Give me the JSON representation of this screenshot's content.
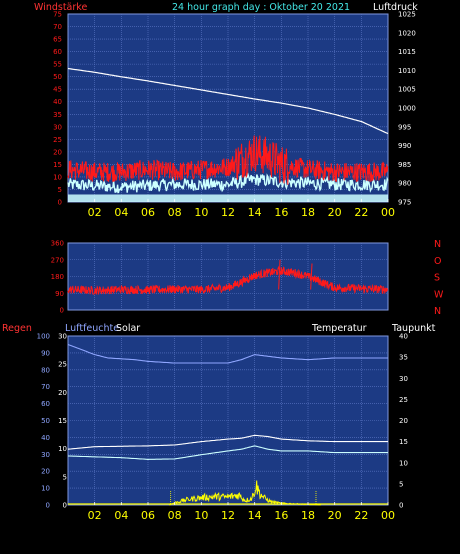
{
  "title": "24 hour graph day : Oktober 20 2021",
  "colors": {
    "background": "#000000",
    "plot_bg": "#1c3a84",
    "grid": "#5d78c8",
    "wind": "#ff1a1a",
    "wind_gust_band": "#ccffff",
    "pressure": "#ffffff",
    "direction": "#ff1a1a",
    "humidity": "#8fa6ff",
    "temperature": "#ffffff",
    "dewpoint": "#ccffff",
    "solar": "#ffff00",
    "rain_label": "#ff3333",
    "xtick": "#ffff00"
  },
  "chart_data": [
    {
      "type": "line",
      "name": "wind-pressure",
      "left_label": "Windstärke",
      "right_label": "Luftdruck",
      "x_ticks": [
        "02",
        "04",
        "06",
        "08",
        "10",
        "12",
        "14",
        "16",
        "18",
        "20",
        "22",
        "00"
      ],
      "xlim": [
        0,
        24
      ],
      "left_ylim": [
        0,
        75
      ],
      "left_ticks": [
        "0",
        "5",
        "10",
        "15",
        "20",
        "25",
        "30",
        "35",
        "40",
        "45",
        "50",
        "55",
        "60",
        "65",
        "70",
        "75"
      ],
      "right_ylim": [
        975,
        1025
      ],
      "right_ticks": [
        "975",
        "980",
        "985",
        "990",
        "995",
        "1000",
        "1005",
        "1010",
        "1015",
        "1020",
        "1025"
      ],
      "series": [
        {
          "axis": "right",
          "x": [
            0,
            2,
            4,
            6,
            8,
            10,
            12,
            13,
            14,
            16,
            18,
            20,
            22,
            23,
            24
          ],
          "values": [
            1010.5,
            1009.5,
            1008.3,
            1007.2,
            1006.0,
            1004.8,
            1003.6,
            1003.0,
            1002.4,
            1001.3,
            1000.0,
            998.3,
            996.4,
            994.8,
            993.2
          ]
        },
        {
          "axis": "left",
          "x": [
            0,
            2,
            4,
            6,
            8,
            10,
            12,
            13,
            14,
            15,
            16,
            18,
            20,
            22,
            24
          ],
          "values": [
            13,
            12,
            12,
            13,
            12,
            13,
            14,
            17,
            20,
            18,
            15,
            13,
            12,
            12,
            12
          ]
        },
        {
          "axis": "left",
          "x": [
            0,
            4,
            8,
            12,
            14,
            16,
            20,
            24
          ],
          "values": [
            7,
            6,
            7,
            7,
            9,
            8,
            7,
            7
          ]
        }
      ]
    },
    {
      "type": "line",
      "name": "wind-direction",
      "left_ylim": [
        0,
        360
      ],
      "left_ticks": [
        "0",
        "90",
        "180",
        "270",
        "360"
      ],
      "right_labels": [
        "N",
        "W",
        "S",
        "O",
        "N"
      ],
      "series": [
        {
          "x": [
            0,
            2,
            4,
            6,
            8,
            10,
            12,
            13,
            14,
            15,
            16,
            17,
            18,
            19,
            20,
            22,
            24
          ],
          "values": [
            110,
            105,
            110,
            108,
            112,
            110,
            120,
            150,
            185,
            200,
            210,
            200,
            180,
            150,
            120,
            115,
            110
          ]
        }
      ]
    },
    {
      "type": "line",
      "name": "humidity-temperature",
      "labels": {
        "rain": "Regen",
        "humidity": "Luftfeuchte",
        "solar": "Solar",
        "temperature": "Temperatur",
        "dewpoint": "Taupunkt"
      },
      "left_ylim": [
        0,
        100
      ],
      "left_ticks": [
        "0",
        "10",
        "20",
        "30",
        "40",
        "50",
        "60",
        "70",
        "80",
        "90",
        "100"
      ],
      "inner_ylim": [
        0,
        30
      ],
      "inner_ticks": [
        "0",
        "5",
        "10",
        "15",
        "20",
        "25",
        "30"
      ],
      "right_ylim": [
        0,
        40
      ],
      "right_ticks": [
        "0",
        "5",
        "10",
        "15",
        "20",
        "25",
        "30",
        "35",
        "40"
      ],
      "series": [
        {
          "name": "Luftfeuchte",
          "x": [
            0,
            1,
            2,
            3,
            5,
            6,
            8,
            10,
            12,
            13,
            14,
            15,
            16,
            18,
            20,
            22,
            24
          ],
          "values": [
            95,
            92,
            89,
            87,
            86,
            85,
            84,
            84,
            84,
            86,
            89,
            88,
            87,
            86,
            87,
            87,
            87
          ]
        },
        {
          "name": "Temperatur",
          "x": [
            0,
            2,
            4,
            6,
            8,
            10,
            12,
            13,
            14,
            15,
            16,
            18,
            20,
            22,
            24
          ],
          "values": [
            13.2,
            13.8,
            13.9,
            14.0,
            14.2,
            15.0,
            15.6,
            15.8,
            16.5,
            16.2,
            15.6,
            15.2,
            15.0,
            15.0,
            15.0
          ]
        },
        {
          "name": "Taupunkt",
          "x": [
            0,
            2,
            4,
            6,
            8,
            10,
            12,
            13,
            14,
            15,
            16,
            18,
            20,
            22,
            24
          ],
          "values": [
            11.6,
            11.4,
            11.2,
            10.8,
            10.9,
            11.9,
            12.8,
            13.2,
            14.0,
            13.2,
            12.8,
            12.8,
            12.4,
            12.4,
            12.4
          ]
        },
        {
          "name": "Solar",
          "x": [
            7.6,
            8,
            9,
            10,
            11,
            12,
            12.8,
            13.3,
            13.8,
            14.1,
            14.4,
            14.8,
            15.2,
            16,
            18,
            19
          ],
          "values": [
            0,
            0.4,
            1.0,
            1.3,
            1.5,
            1.4,
            1.8,
            0.8,
            1.2,
            3.5,
            2.0,
            1.1,
            0.6,
            0.3,
            0.1,
            0
          ]
        }
      ],
      "markers_x": [
        7.7,
        18.6
      ]
    }
  ]
}
